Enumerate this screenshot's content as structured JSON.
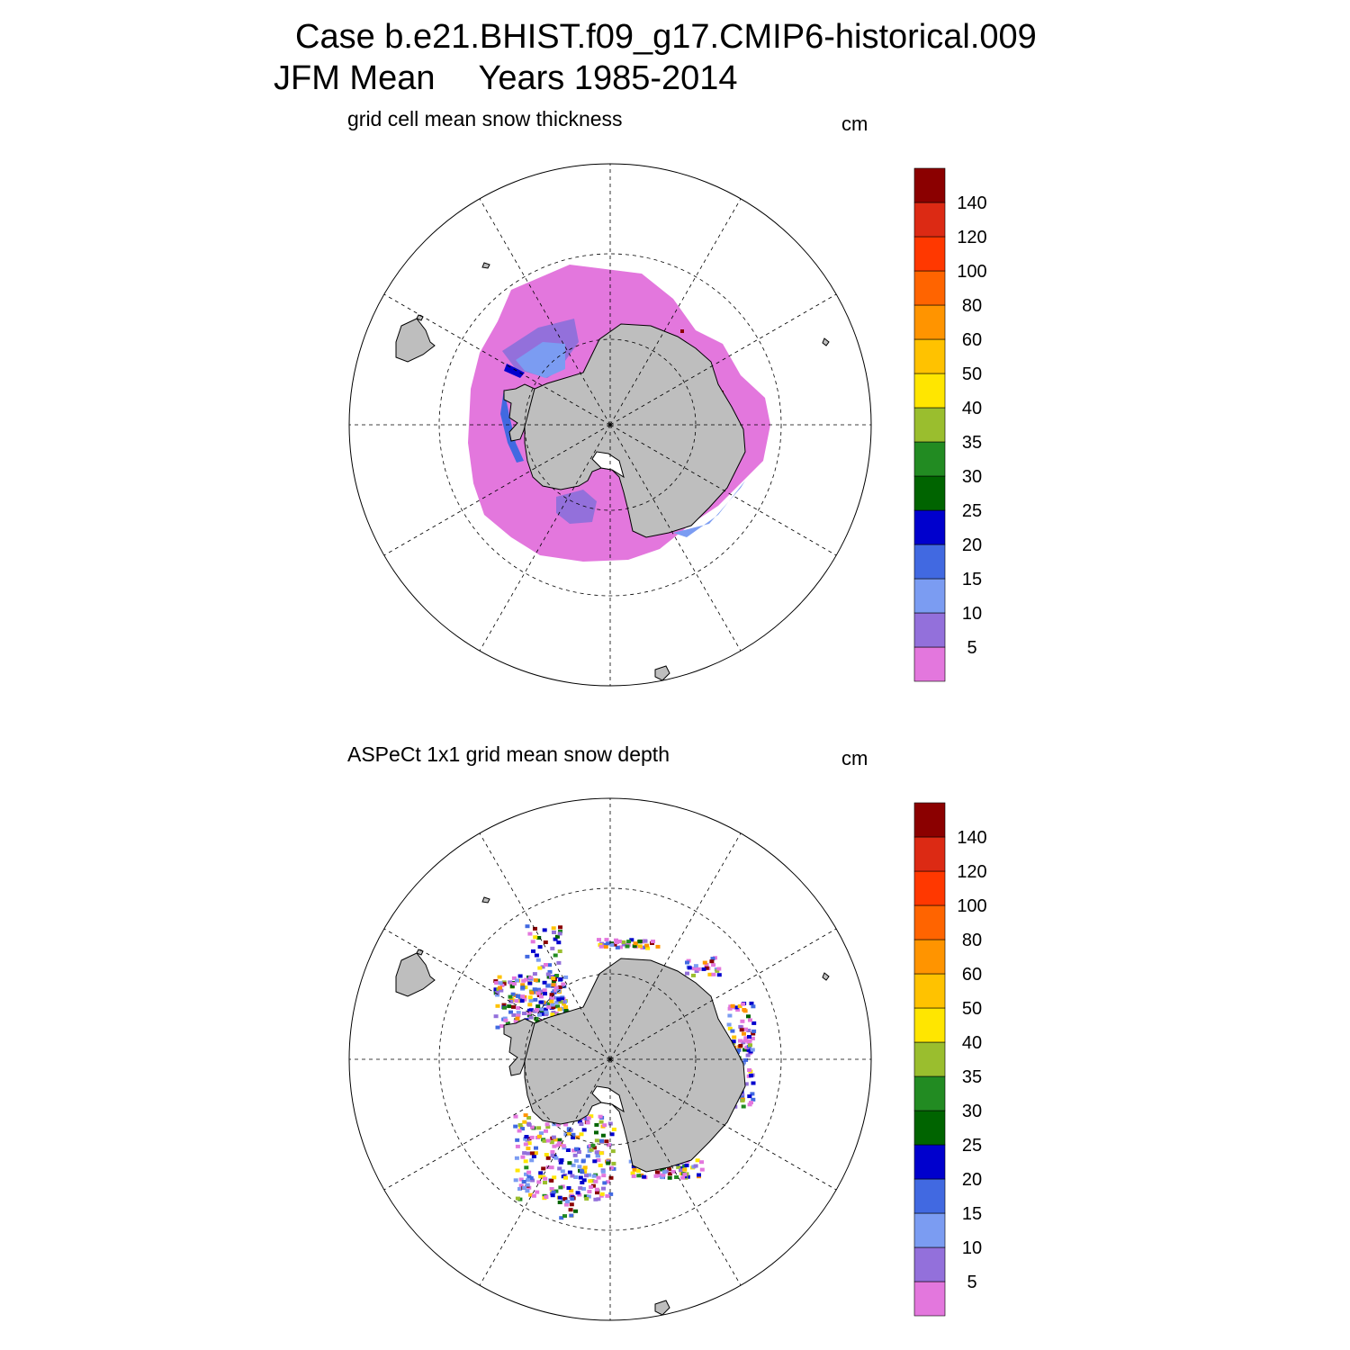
{
  "title": {
    "line1": "Case b.e21.BHIST.f09_g17.CMIP6-historical.009",
    "line2_left": "JFM Mean",
    "line2_right": "Years 1985-2014"
  },
  "panels": [
    {
      "title": "grid cell mean snow thickness",
      "units": "cm"
    },
    {
      "title": "ASPeCt 1x1 grid mean snow depth",
      "units": "cm"
    }
  ],
  "colorbar": {
    "colors": [
      "#e377dd",
      "#9370db",
      "#7b9cf2",
      "#4169e1",
      "#0000cd",
      "#006400",
      "#228b22",
      "#9abe2e",
      "#ffe600",
      "#ffc200",
      "#ff9400",
      "#ff6400",
      "#ff3800",
      "#dc2a14",
      "#8b0000"
    ],
    "labels": [
      "5",
      "10",
      "15",
      "20",
      "25",
      "30",
      "35",
      "40",
      "50",
      "60",
      "80",
      "100",
      "120",
      "140"
    ]
  },
  "colors": {
    "land": "#bebebe",
    "sea_ice_snow_low": "#e377dd"
  }
}
